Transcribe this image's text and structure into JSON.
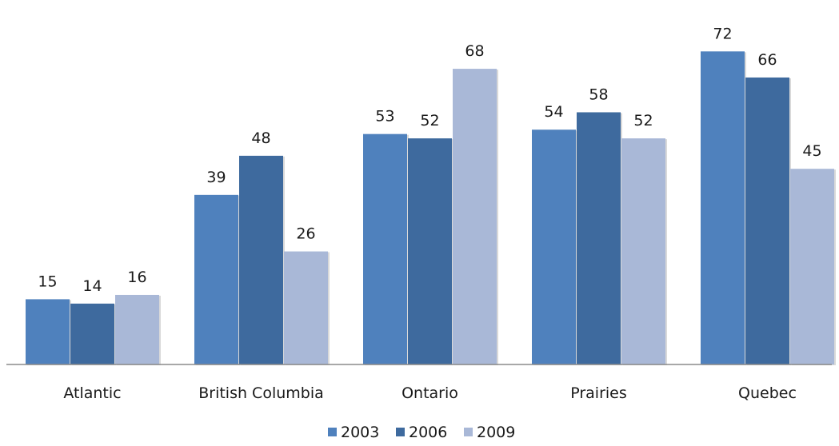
{
  "chart_data": {
    "type": "bar",
    "title": "",
    "xlabel": "",
    "ylabel": "",
    "categories": [
      "Atlantic",
      "British Columbia",
      "Ontario",
      "Prairies",
      "Quebec"
    ],
    "series": [
      {
        "name": "2003",
        "values": [
          15,
          39,
          53,
          54,
          72
        ],
        "color": "#4f81bd"
      },
      {
        "name": "2006",
        "values": [
          14,
          48,
          52,
          58,
          66
        ],
        "color": "#3e6a9e"
      },
      {
        "name": "2009",
        "values": [
          16,
          26,
          68,
          52,
          45
        ],
        "color": "#a9b8d7"
      }
    ],
    "ylim": [
      0,
      75
    ],
    "grid": false,
    "legend_position": "bottom"
  }
}
